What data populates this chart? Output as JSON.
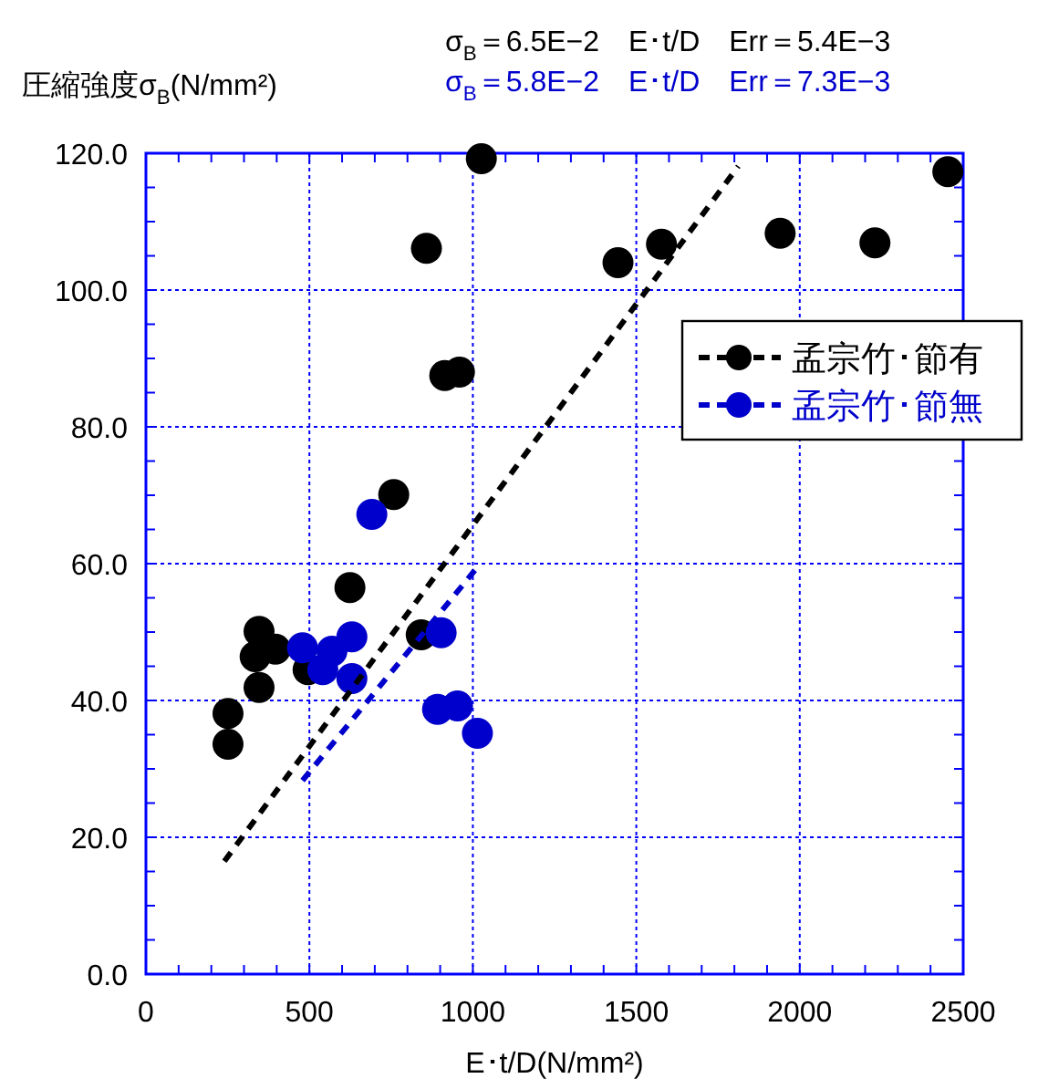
{
  "chart_data": {
    "type": "scatter",
    "xlabel": "E･t/D(N/mm²)",
    "ylabel": "圧縮強度σ$_{B}$(N/mm²)",
    "annotations": [
      "σ$_{B}$＝6.5E−2　E･t/D　Err＝5.4E−3",
      "σ$_{B}$＝5.8E−2　E･t/D　Err＝7.3E−3"
    ],
    "xlim": [
      0,
      2500
    ],
    "xticks": [
      0,
      500,
      1000,
      1500,
      2000,
      2500
    ],
    "ylim": [
      0,
      120
    ],
    "yticks": [
      {
        "value": 0,
        "label": "0.0"
      },
      {
        "value": 20,
        "label": "20.0"
      },
      {
        "value": 40,
        "label": "40.0"
      },
      {
        "value": 60,
        "label": "60.0"
      },
      {
        "value": 80,
        "label": "80.0"
      },
      {
        "value": 100,
        "label": "100.0"
      },
      {
        "value": 120,
        "label": "120.0"
      }
    ],
    "grid": true,
    "legend": "top right",
    "marker": "circle",
    "series": [
      {
        "name": "孟宗竹･節有",
        "color": "#000000",
        "x": [
          251,
          251,
          346,
          334,
          396,
          346,
          496,
          624,
          842,
          758,
          858,
          914,
          959,
          1026,
          1444,
          1577,
          1940,
          2230,
          2453
        ],
        "values": [
          38.1,
          33.6,
          50.1,
          46.4,
          47.5,
          41.9,
          44.5,
          56.5,
          49.6,
          70.1,
          106.1,
          87.5,
          88,
          119.2,
          104,
          106.7,
          108.3,
          106.9,
          117.3
        ]
      },
      {
        "name": "孟宗竹･節無",
        "color": "#0000cc",
        "x": [
          479,
          541,
          569,
          630,
          630,
          691,
          903,
          892,
          953,
          1014
        ],
        "values": [
          47.7,
          44.5,
          47.2,
          49.3,
          43.2,
          67.2,
          49.9,
          38.7,
          39.2,
          35.2
        ]
      },
      {
        "type": "line",
        "color": "#000000",
        "line_style": "dashed",
        "marker": "none",
        "x": [
          240,
          1812
        ],
        "values": [
          16.5,
          118.1
        ]
      },
      {
        "type": "line",
        "color": "#0000cc",
        "line_style": "dashed",
        "marker": "none",
        "x": [
          479,
          1009
        ],
        "values": [
          28.3,
          59.2
        ]
      }
    ]
  }
}
